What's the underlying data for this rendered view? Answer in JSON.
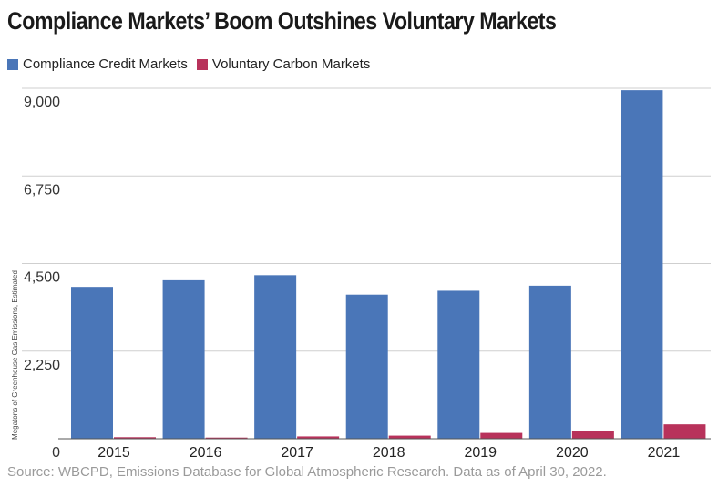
{
  "chart_data": {
    "type": "bar",
    "title": "Compliance Markets’ Boom Outshines Voluntary Markets",
    "xlabel": "",
    "ylabel": "Megatons of Greenhouse Gas Emissions, Estimated",
    "categories": [
      "2015",
      "2016",
      "2017",
      "2018",
      "2019",
      "2020",
      "2021"
    ],
    "series": [
      {
        "name": "Compliance Credit Markets",
        "color": "#4a76b8",
        "values": [
          3900,
          4070,
          4200,
          3700,
          3800,
          3930,
          8950
        ]
      },
      {
        "name": "Voluntary Carbon Markets",
        "color": "#b8325b",
        "values": [
          40,
          30,
          60,
          80,
          150,
          200,
          370
        ]
      }
    ],
    "ylim": [
      0,
      9000
    ],
    "yticks": [
      0,
      2250,
      4500,
      6750,
      9000
    ],
    "ytick_labels": [
      "0",
      "2,250",
      "4,500",
      "6,750",
      "9,000"
    ],
    "grid": true,
    "legend_position": "top-left"
  },
  "source_note": "Source: WBCPD, Emissions Database for Global Atmospheric Research. Data as of April 30, 2022."
}
